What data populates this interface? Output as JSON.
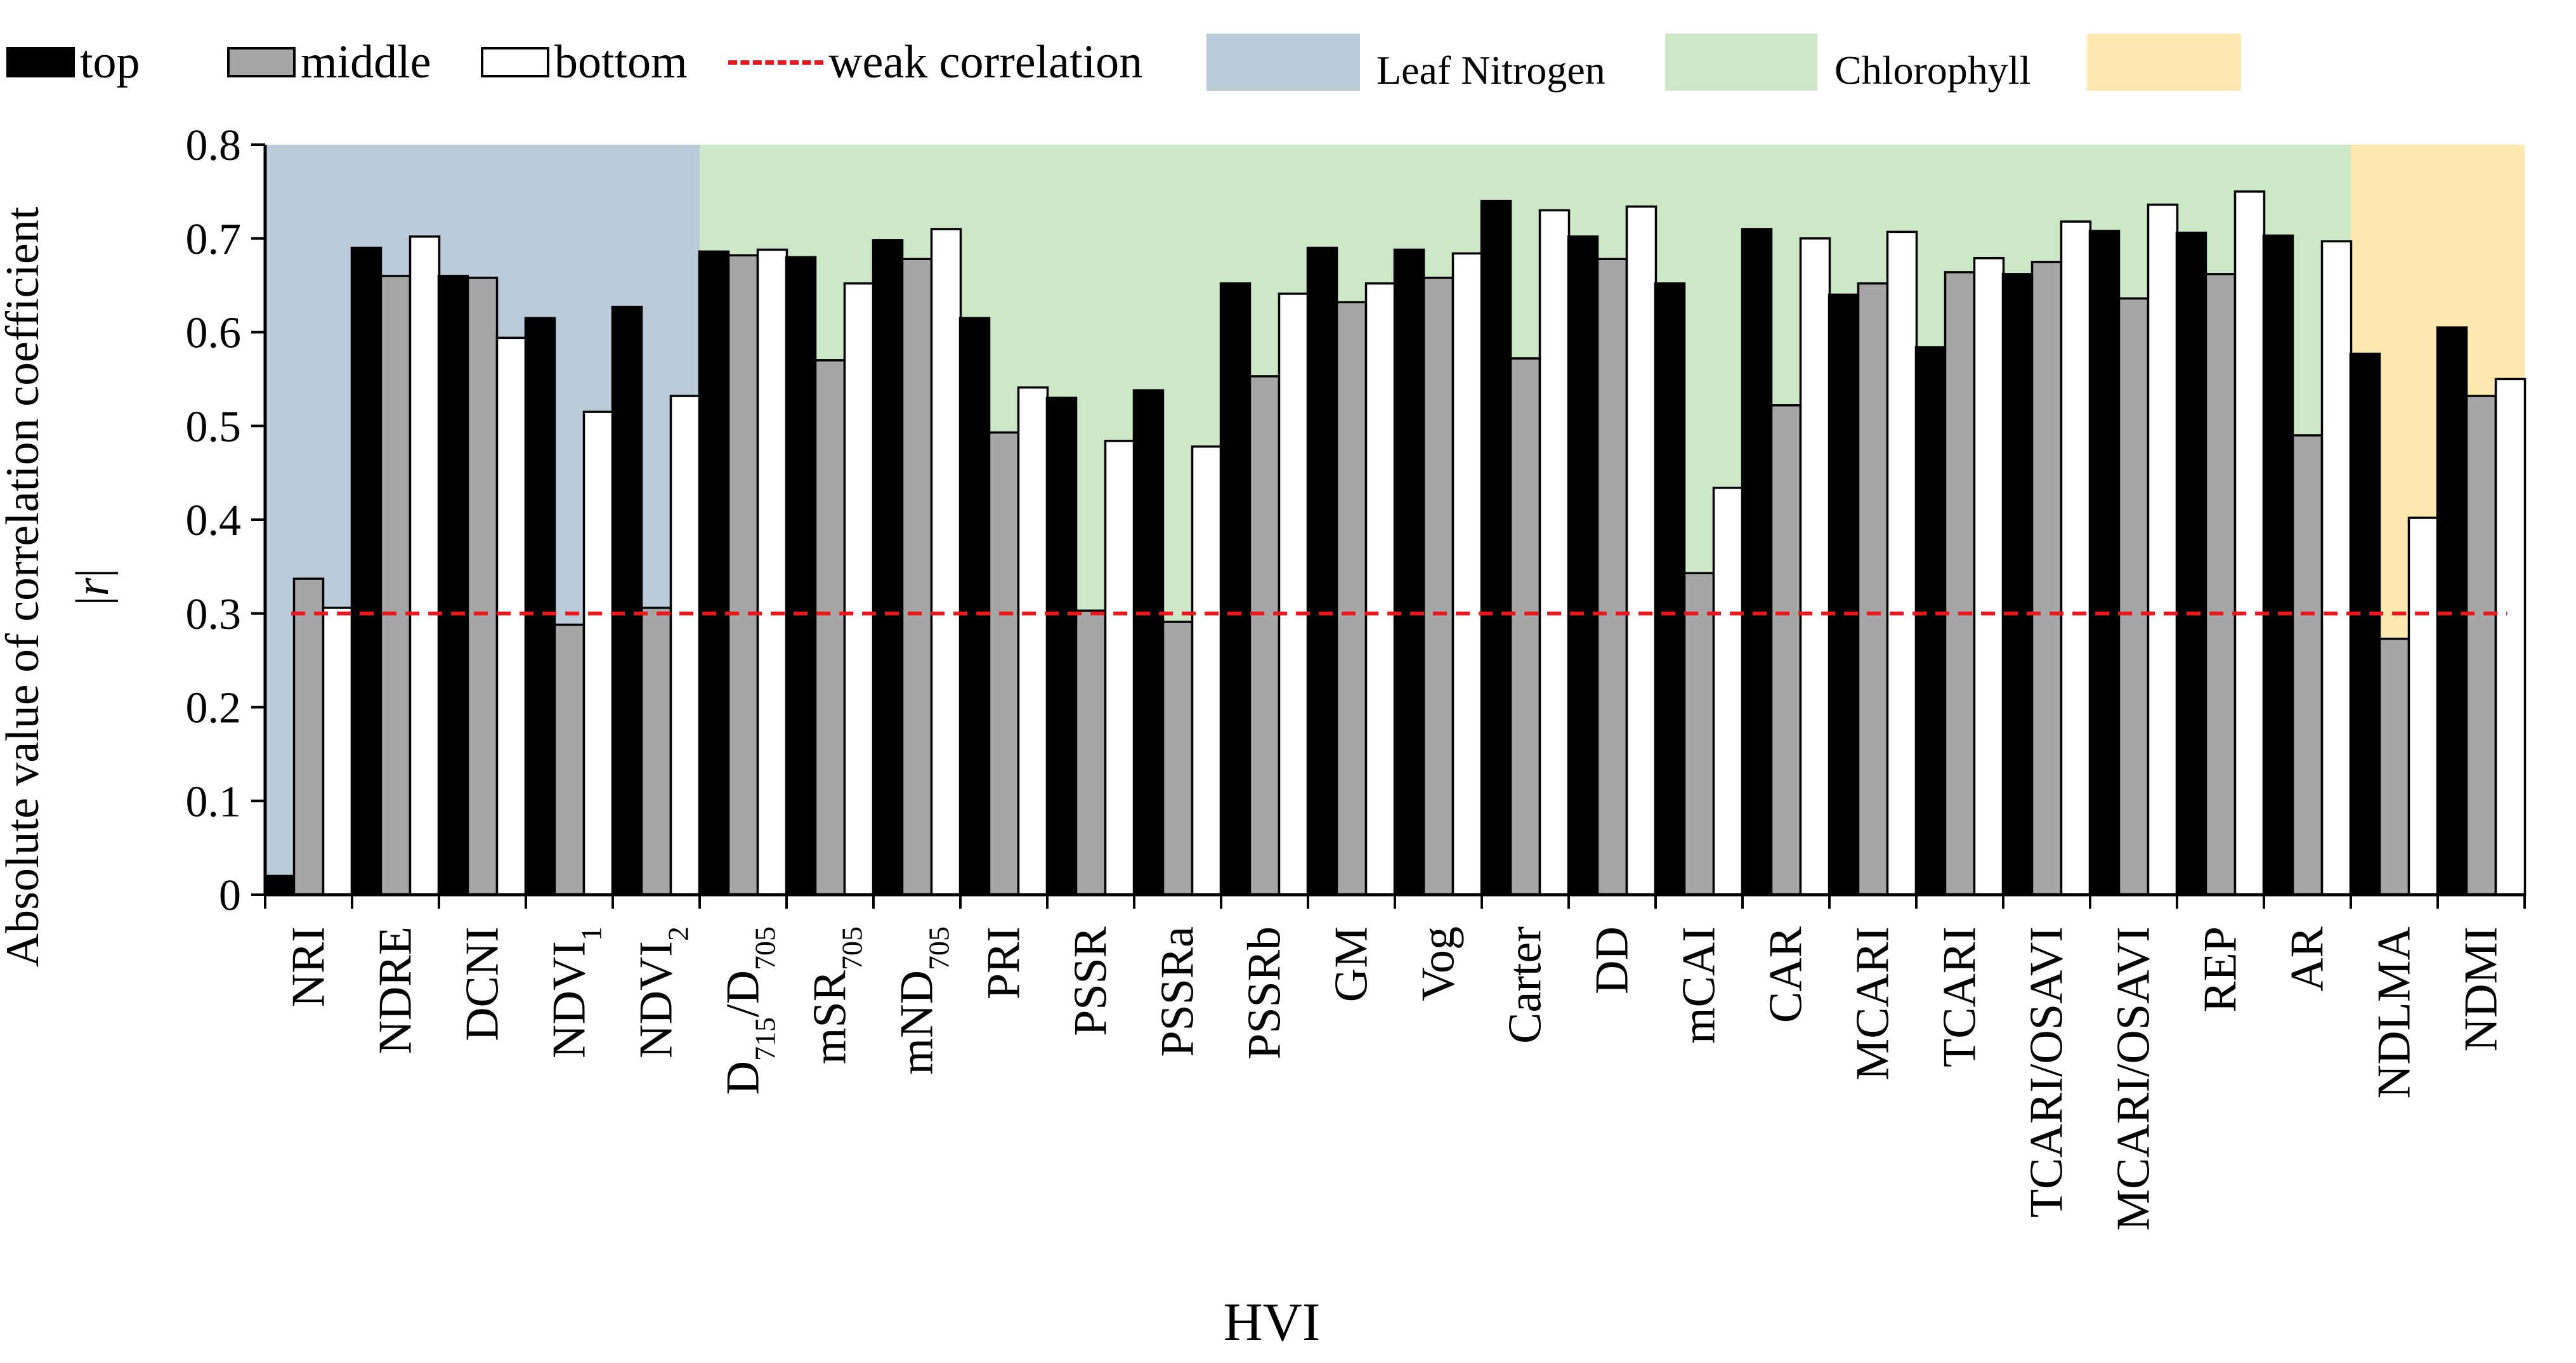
{
  "colors": {
    "top": "#000000",
    "middle": "#a6a6a6",
    "bottom": "#ffffff",
    "weak_line": "#e8191e",
    "leaf_nitrogen_bg": "#bccbd9",
    "chlorophyll_bg": "#cde8c7",
    "third_region_bg": "#fde8b0"
  },
  "legend": {
    "top": "top",
    "middle": "middle",
    "bottom": "bottom",
    "weak": "weak correlation",
    "leaf_nitrogen": "Leaf Nitrogen",
    "chlorophyll": "Chlorophyll"
  },
  "chart_data": {
    "type": "bar",
    "xlabel": "HVI",
    "ylabel": "Absolute value of correlation coefficient |r|",
    "ylim": [
      0,
      0.8
    ],
    "yticks": [
      "0",
      "0.1",
      "0.2",
      "0.3",
      "0.4",
      "0.5",
      "0.6",
      "0.7",
      "0.8"
    ],
    "weak_correlation_threshold": 0.3,
    "categories": [
      {
        "base": "NRI"
      },
      {
        "base": "NDRE"
      },
      {
        "base": "DCNI"
      },
      {
        "base": "NDVI",
        "sub": "1"
      },
      {
        "base": "NDVI",
        "sub": "2"
      },
      {
        "base": "D",
        "sub": "715",
        "mid": "/D",
        "sub2": "705"
      },
      {
        "base": "mSR",
        "sub": "705"
      },
      {
        "base": "mND",
        "sub": "705"
      },
      {
        "base": "PRI"
      },
      {
        "base": "PSSR"
      },
      {
        "base": "PSSRa"
      },
      {
        "base": "PSSRb"
      },
      {
        "base": "GM"
      },
      {
        "base": "Vog"
      },
      {
        "base": "Carter"
      },
      {
        "base": "DD"
      },
      {
        "base": "mCAI"
      },
      {
        "base": "CAR"
      },
      {
        "base": "MCARI"
      },
      {
        "base": "TCARI"
      },
      {
        "base": "TCARI/OSAVI"
      },
      {
        "base": "MCARI/OSAVI"
      },
      {
        "base": "REP"
      },
      {
        "base": "AR"
      },
      {
        "base": "NDLMA"
      },
      {
        "base": "NDMI"
      }
    ],
    "series": [
      {
        "name": "top",
        "values": [
          0.02,
          0.69,
          0.66,
          0.615,
          0.627,
          0.686,
          0.68,
          0.698,
          0.615,
          0.53,
          0.538,
          0.652,
          0.69,
          0.688,
          0.74,
          0.702,
          0.652,
          0.71,
          0.64,
          0.584,
          0.662,
          0.708,
          0.706,
          0.703,
          0.577,
          0.605
        ]
      },
      {
        "name": "middle",
        "values": [
          0.337,
          0.66,
          0.658,
          0.288,
          0.306,
          0.682,
          0.57,
          0.678,
          0.493,
          0.303,
          0.291,
          0.553,
          0.632,
          0.658,
          0.572,
          0.678,
          0.343,
          0.522,
          0.652,
          0.664,
          0.675,
          0.636,
          0.662,
          0.49,
          0.273,
          0.532
        ]
      },
      {
        "name": "bottom",
        "values": [
          0.306,
          0.702,
          0.594,
          0.515,
          0.532,
          0.688,
          0.652,
          0.71,
          0.541,
          0.484,
          0.478,
          0.641,
          0.652,
          0.684,
          0.73,
          0.734,
          0.434,
          0.7,
          0.707,
          0.679,
          0.718,
          0.736,
          0.75,
          0.697,
          0.402,
          0.55
        ]
      }
    ],
    "regions": [
      {
        "name": "Leaf Nitrogen",
        "from_index": 0,
        "to_index": 4,
        "color_key": "leaf_nitrogen_bg"
      },
      {
        "name": "Chlorophyll",
        "from_index": 5,
        "to_index": 23,
        "color_key": "chlorophyll_bg"
      },
      {
        "name": "",
        "from_index": 24,
        "to_index": 25,
        "color_key": "third_region_bg"
      }
    ]
  }
}
